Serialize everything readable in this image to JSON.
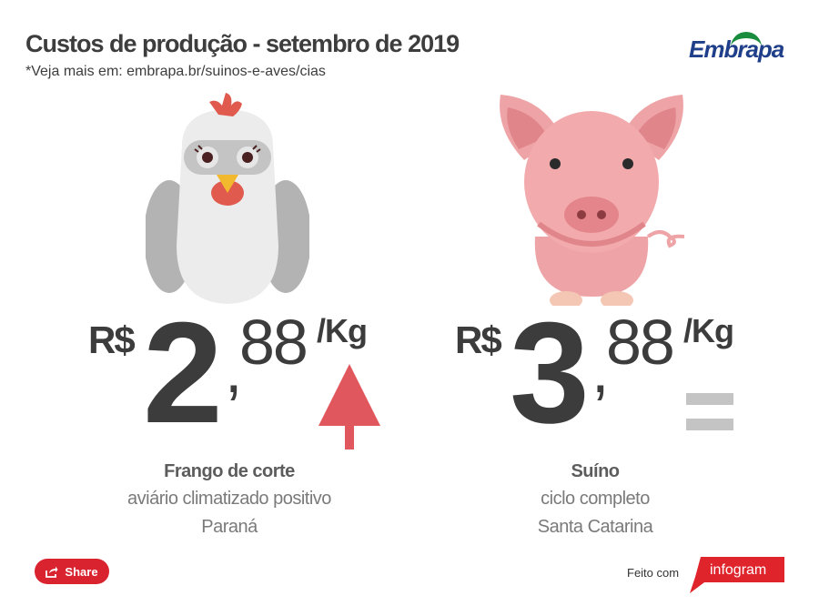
{
  "header": {
    "title": "Custos de produção - setembro de 2019",
    "subtitle": "*Veja mais em: embrapa.br/suinos-e-aves/cias",
    "logo_text": "Embrapa"
  },
  "colors": {
    "brand_blue": "#1f3f8a",
    "brand_green": "#1a8c3e",
    "arrow_up": "#e0585e",
    "equal": "#c4c4c4",
    "share": "#d9232f"
  },
  "chicken": {
    "icon": "chicken-icon",
    "currency": "R$",
    "integer": "2",
    "comma": ",",
    "cents": "88",
    "unit": "/Kg",
    "trend": "up",
    "trend_icon": "arrow-up-icon",
    "name": "Frango de corte",
    "line1": "aviário climatizado positivo",
    "line2": "Paraná"
  },
  "pig": {
    "icon": "pig-icon",
    "currency": "R$",
    "integer": "3",
    "comma": ",",
    "cents": "88",
    "unit": "/Kg",
    "trend": "equal",
    "trend_icon": "equals-icon",
    "name": "Suíno",
    "line1": "ciclo completo",
    "line2": "Santa Catarina"
  },
  "footer": {
    "share_label": "Share",
    "share_icon": "share-icon",
    "made_with": "Feito com",
    "infogram": "infogram"
  }
}
